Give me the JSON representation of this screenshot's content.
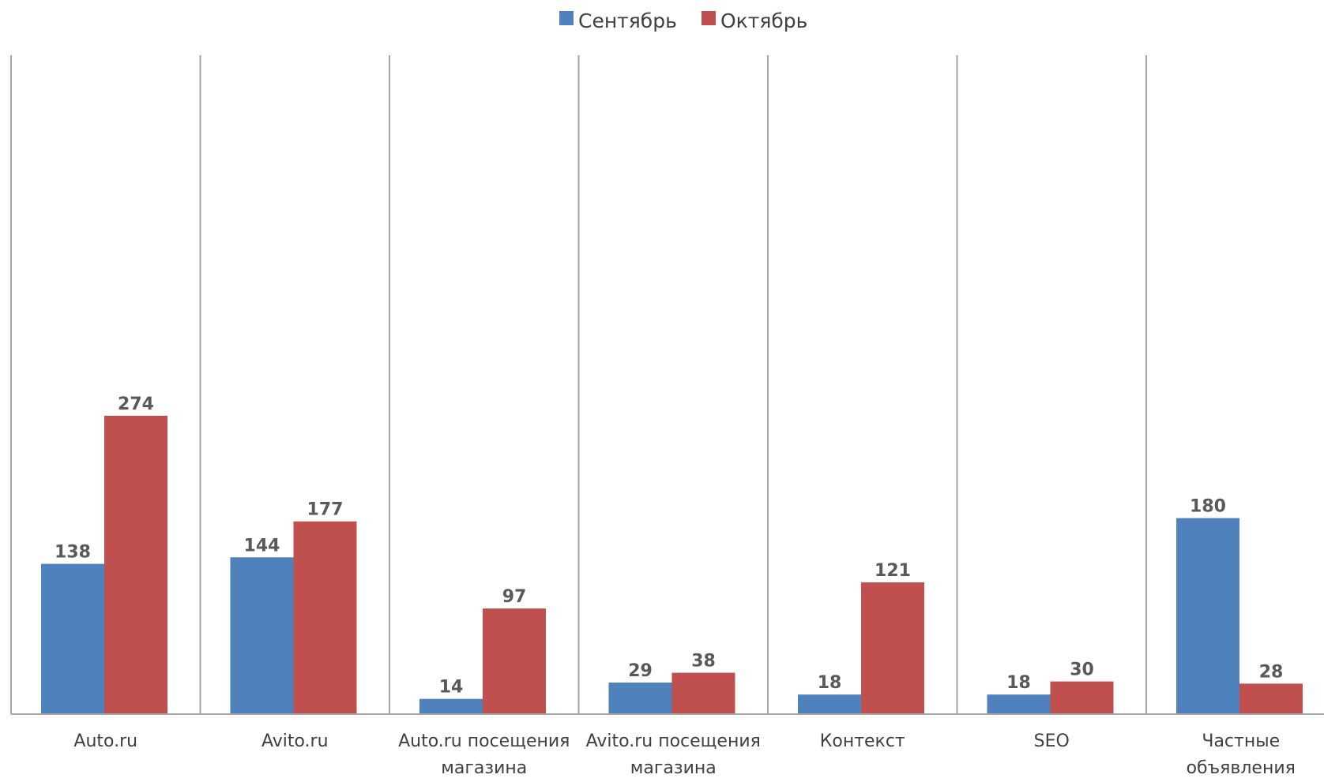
{
  "chart_data": {
    "type": "bar",
    "title": "",
    "xlabel": "",
    "ylabel": "",
    "ylim": [
      0,
      300
    ],
    "grid": false,
    "legend_position": "top-center",
    "categories": [
      [
        "Auto.ru"
      ],
      [
        "Avito.ru"
      ],
      [
        "Auto.ru посещения",
        "магазина"
      ],
      [
        "Avito.ru посещения",
        "магазина"
      ],
      [
        "Контекст"
      ],
      [
        "SEO"
      ],
      [
        "Частные",
        "объявления"
      ]
    ],
    "series": [
      {
        "name": "Сентябрь",
        "color": "#4F81BD",
        "values": [
          138,
          144,
          14,
          29,
          18,
          18,
          180
        ]
      },
      {
        "name": "Октябрь",
        "color": "#C0504D",
        "values": [
          274,
          177,
          97,
          38,
          121,
          30,
          28
        ]
      }
    ]
  }
}
